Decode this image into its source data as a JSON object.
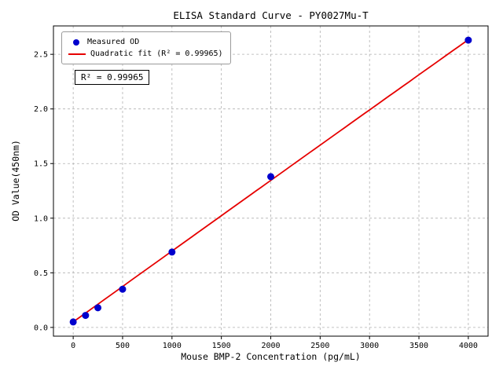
{
  "chart_data": {
    "type": "scatter",
    "title": "ELISA Standard Curve - PY0027Mu-T",
    "xlabel": "Mouse BMP-2 Concentration (pg/mL)",
    "ylabel": "OD Value(450nm)",
    "xlim": [
      -200,
      4200
    ],
    "ylim": [
      -0.08,
      2.76
    ],
    "xticks": [
      0,
      500,
      1000,
      1500,
      2000,
      2500,
      3000,
      3500,
      4000
    ],
    "yticks": [
      0.0,
      0.5,
      1.0,
      1.5,
      2.0,
      2.5
    ],
    "grid": true,
    "legend_position": "upper-left",
    "annotation": "R² = 0.99965",
    "r_squared": 0.99965,
    "series": [
      {
        "name": "Measured OD",
        "type": "scatter",
        "color": "#0000cd",
        "x": [
          0,
          125,
          250,
          500,
          1000,
          2000,
          4000
        ],
        "y": [
          0.05,
          0.11,
          0.18,
          0.35,
          0.69,
          1.38,
          2.63
        ]
      },
      {
        "name": "Quadratic fit (R² = 0.99965)",
        "type": "line",
        "color": "#e60000",
        "fit": {
          "a": 0.05,
          "b": 0.00065,
          "c": -1e-09,
          "x_min": 0,
          "x_max": 4000
        }
      }
    ]
  }
}
